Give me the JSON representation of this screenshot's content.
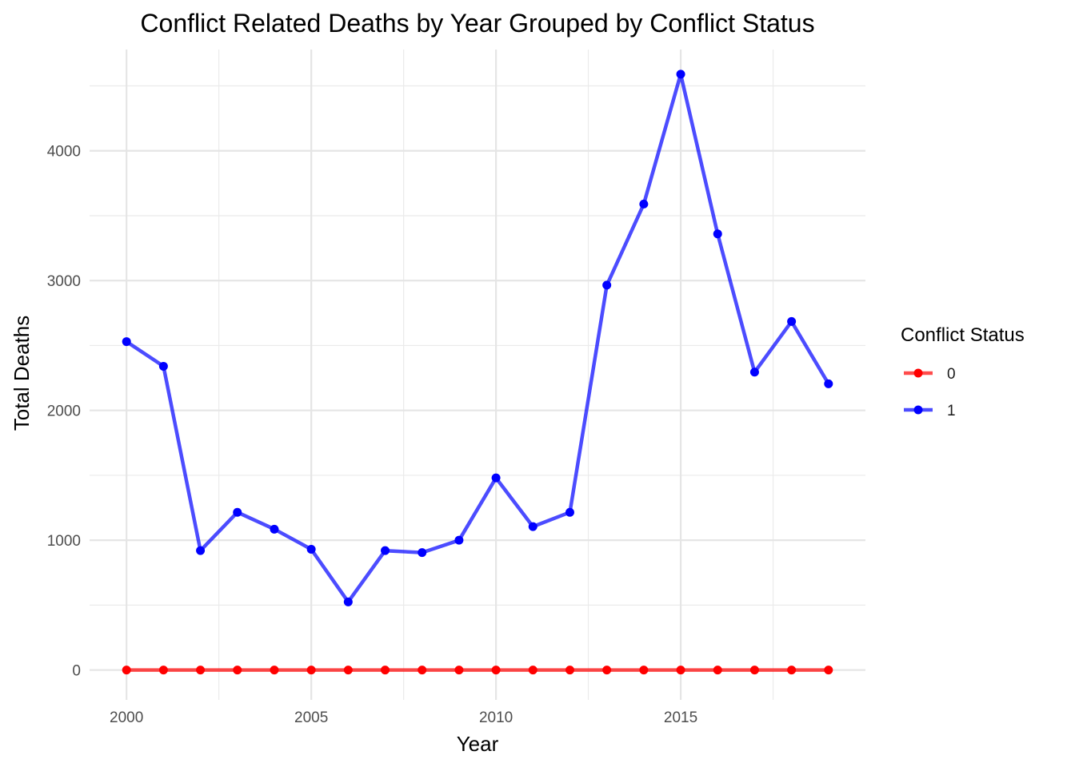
{
  "chart_data": {
    "type": "line",
    "title": "Conflict Related Deaths by Year Grouped by Conflict Status",
    "xlabel": "Year",
    "ylabel": "Total Deaths",
    "x": [
      2000,
      2001,
      2002,
      2003,
      2004,
      2005,
      2006,
      2007,
      2008,
      2009,
      2010,
      2011,
      2012,
      2013,
      2014,
      2015,
      2016,
      2017,
      2018,
      2019
    ],
    "series": [
      {
        "name": "0",
        "color": "#ff0000",
        "values": [
          0,
          0,
          0,
          0,
          0,
          0,
          0,
          0,
          0,
          0,
          0,
          0,
          0,
          0,
          0,
          0,
          0,
          0,
          0,
          0
        ]
      },
      {
        "name": "1",
        "color": "#0000ff",
        "values": [
          2530,
          2340,
          920,
          1215,
          1085,
          930,
          525,
          920,
          905,
          1000,
          1480,
          1105,
          1215,
          2965,
          3590,
          4590,
          3360,
          2295,
          2685,
          2205
        ]
      }
    ],
    "xlim": [
      1999.0,
      2020.0
    ],
    "ylim": [
      -230,
      4780
    ],
    "x_ticks": [
      "2000",
      "2005",
      "2010",
      "2015"
    ],
    "y_ticks": [
      "0",
      "1000",
      "2000",
      "3000",
      "4000"
    ],
    "grid": true,
    "legend": {
      "title": "Conflict Status",
      "placement": "right"
    }
  }
}
